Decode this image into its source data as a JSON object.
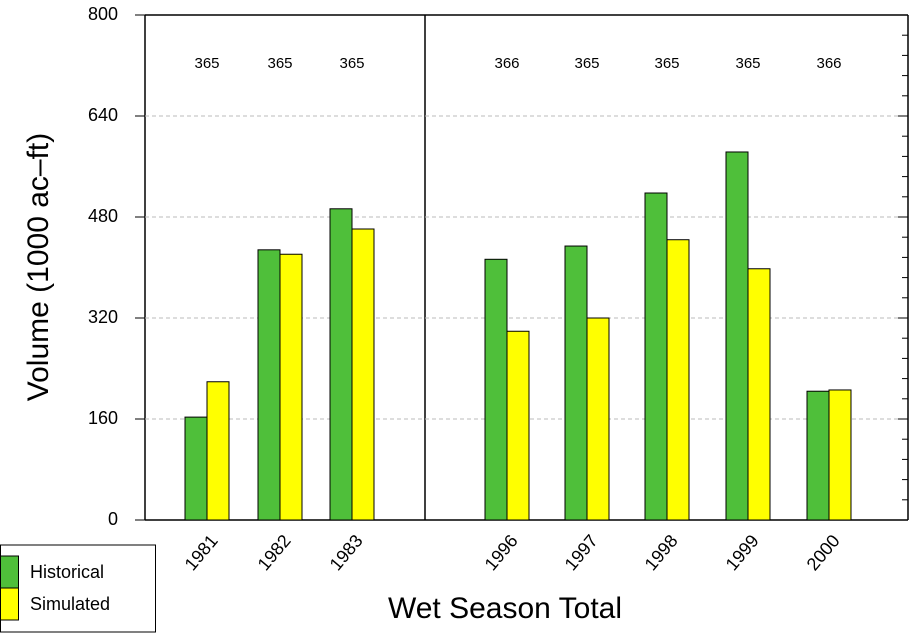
{
  "chart_data": {
    "type": "bar",
    "x_label": "Wet Season Total",
    "y_label": "Volume (1000 ac–ft)",
    "categories": [
      "1981",
      "1982",
      "1983",
      "1996",
      "1997",
      "1998",
      "1999",
      "2000"
    ],
    "day_counts": [
      "365",
      "365",
      "365",
      "366",
      "365",
      "365",
      "365",
      "366"
    ],
    "series": [
      {
        "name": "Historical",
        "color": "#4fbf3a",
        "values": [
          163,
          428,
          493,
          413,
          434,
          518,
          583,
          204
        ]
      },
      {
        "name": "Simulated",
        "color": "#ffff00",
        "values": [
          219,
          421,
          461,
          299,
          320,
          444,
          398,
          206
        ]
      }
    ],
    "ylim": [
      0,
      800
    ],
    "yticks": [
      0,
      160,
      320,
      480,
      640,
      800
    ],
    "minor_yticks": [
      32,
      64,
      96,
      128,
      192,
      224,
      256,
      288,
      352,
      384,
      416,
      448,
      512,
      544,
      576,
      608,
      672,
      704,
      736,
      768
    ],
    "grid": true,
    "legend": "bottom-left"
  }
}
